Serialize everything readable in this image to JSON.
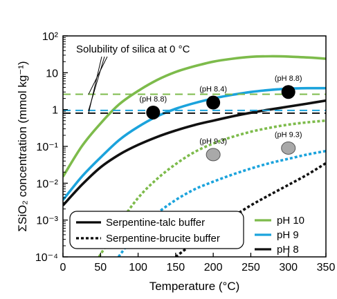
{
  "chart_data": {
    "type": "line",
    "xlabel": "Temperature (°C)",
    "ylabel": "ΣSiO₂ concentration (mmol kg⁻¹)",
    "xlim": [
      0,
      350
    ],
    "ylim": [
      0.0001,
      100
    ],
    "yscale": "log",
    "x_ticks": [
      "0",
      "50",
      "100",
      "150",
      "200",
      "250",
      "300",
      "350"
    ],
    "y_ticks": [
      "10⁻⁴",
      "10⁻³",
      "10⁻²",
      "10⁻¹",
      "1",
      "10",
      "10²"
    ],
    "colors": {
      "ph10": "#7dbb4b",
      "ph9": "#1ba3dc",
      "ph8": "#111111",
      "marker_black": "#000000",
      "marker_gray": "#a9a9a9"
    },
    "series": [
      {
        "name": "pH 10",
        "buffer": "serpentine-talc",
        "style": "solid",
        "color": "#7dbb4b",
        "x": [
          0,
          25,
          50,
          75,
          100,
          125,
          150,
          175,
          200,
          225,
          250,
          275,
          300,
          325,
          350
        ],
        "y": [
          0.015,
          0.1,
          0.42,
          1.4,
          3.2,
          6.3,
          10.5,
          15,
          20,
          24,
          27,
          28,
          27.5,
          26,
          24
        ]
      },
      {
        "name": "pH 9",
        "buffer": "serpentine-talc",
        "style": "solid",
        "color": "#1ba3dc",
        "x": [
          0,
          25,
          50,
          75,
          100,
          125,
          150,
          175,
          200,
          225,
          250,
          275,
          300,
          325,
          350
        ],
        "y": [
          0.0035,
          0.015,
          0.05,
          0.15,
          0.34,
          0.65,
          1.05,
          1.5,
          2.0,
          2.5,
          3.0,
          3.4,
          3.7,
          3.8,
          3.8
        ]
      },
      {
        "name": "pH 8",
        "buffer": "serpentine-talc",
        "style": "solid",
        "color": "#111111",
        "x": [
          0,
          25,
          50,
          75,
          100,
          125,
          150,
          175,
          200,
          225,
          250,
          275,
          300,
          325,
          350
        ],
        "y": [
          0.0025,
          0.009,
          0.027,
          0.06,
          0.11,
          0.18,
          0.27,
          0.38,
          0.5,
          0.65,
          0.82,
          1.0,
          1.2,
          1.45,
          1.75
        ]
      },
      {
        "name": "pH 10",
        "buffer": "serpentine-brucite",
        "style": "dotted",
        "color": "#7dbb4b",
        "x": [
          48,
          60,
          75,
          100,
          125,
          150,
          175,
          200,
          225,
          250,
          275,
          300,
          325,
          350
        ],
        "y": [
          0.0001,
          0.00025,
          0.0008,
          0.004,
          0.013,
          0.033,
          0.07,
          0.12,
          0.18,
          0.25,
          0.32,
          0.39,
          0.45,
          0.5
        ]
      },
      {
        "name": "pH 9",
        "buffer": "serpentine-brucite",
        "style": "dotted",
        "color": "#1ba3dc",
        "x": [
          74,
          90,
          100,
          125,
          150,
          175,
          200,
          225,
          250,
          275,
          300,
          325,
          350
        ],
        "y": [
          0.0001,
          0.00028,
          0.0005,
          0.0015,
          0.0035,
          0.0068,
          0.011,
          0.017,
          0.025,
          0.035,
          0.046,
          0.06,
          0.075
        ]
      },
      {
        "name": "pH 8",
        "buffer": "serpentine-brucite",
        "style": "dotted",
        "color": "#111111",
        "x": [
          150,
          175,
          200,
          225,
          250,
          275,
          300,
          325,
          350
        ],
        "y": [
          0.0001,
          0.00025,
          0.0006,
          0.0012,
          0.0025,
          0.0048,
          0.009,
          0.017,
          0.035
        ]
      }
    ],
    "reference_lines": [
      {
        "color": "#7dbb4b",
        "style": "dashed",
        "y": 2.6,
        "x_start": 0,
        "x_end": 350
      },
      {
        "color": "#1ba3dc",
        "style": "dashed",
        "y": 0.95,
        "x_start": 0,
        "x_end": 350
      },
      {
        "color": "#111111",
        "style": "dashed",
        "y": 0.8,
        "x_start": 0,
        "x_end": 350
      }
    ],
    "reference_label": "Solubility of silica at 0 °C",
    "points": [
      {
        "x": 120,
        "y": 0.83,
        "label": "(pH 8.8)",
        "color": "#000000"
      },
      {
        "x": 200,
        "y": 1.55,
        "label": "(pH 8.4)",
        "color": "#000000"
      },
      {
        "x": 300,
        "y": 3.0,
        "label": "(pH 8.8)",
        "color": "#000000"
      },
      {
        "x": 200,
        "y": 0.06,
        "label": "(pH 9.3)",
        "color": "#a9a9a9"
      },
      {
        "x": 300,
        "y": 0.09,
        "label": "(pH 9.3)",
        "color": "#a9a9a9"
      }
    ],
    "legend_buffers": [
      "Serpentine-talc buffer",
      "Serpentine-brucite buffer"
    ],
    "legend_ph": [
      {
        "label": "pH 10",
        "color": "#7dbb4b"
      },
      {
        "label": "pH 9",
        "color": "#1ba3dc"
      },
      {
        "label": "pH 8",
        "color": "#111111"
      }
    ],
    "legend_placement": "bottom",
    "grid": false
  }
}
